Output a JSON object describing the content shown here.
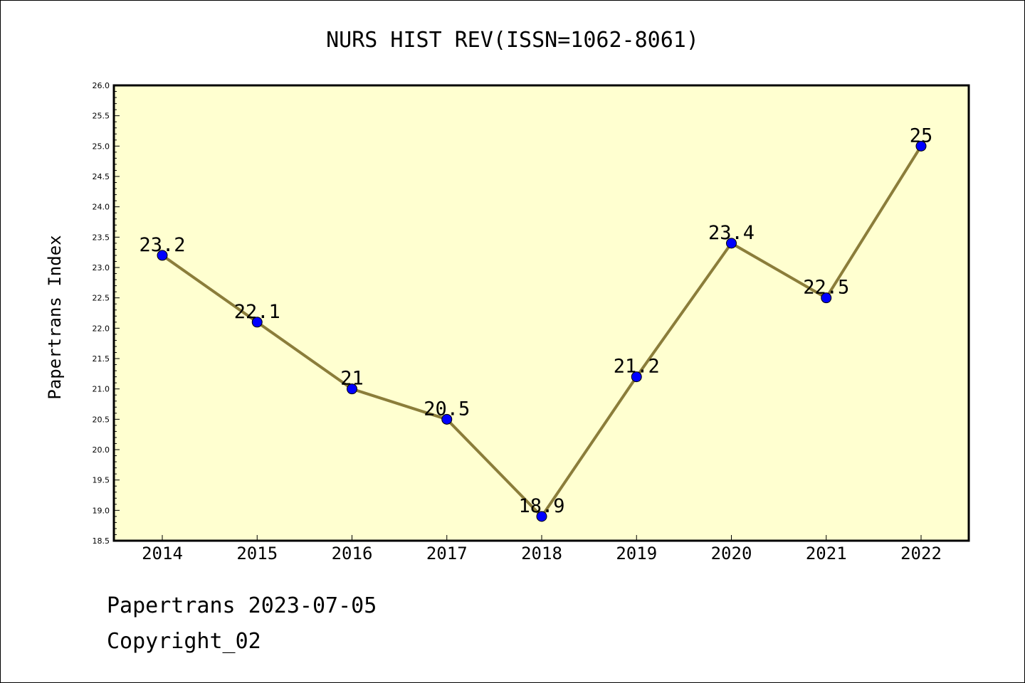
{
  "chart_data": {
    "type": "line",
    "title": "NURS HIST REV(ISSN=1062-8061)",
    "xlabel": "",
    "ylabel": "Papertrans Index",
    "categories": [
      "2014",
      "2015",
      "2016",
      "2017",
      "2018",
      "2019",
      "2020",
      "2021",
      "2022"
    ],
    "series": [
      {
        "values": [
          23.2,
          22.1,
          21,
          20.5,
          18.9,
          21.2,
          23.4,
          22.5,
          25
        ],
        "labels": [
          "23.2",
          "22.1",
          "21",
          "20.5",
          "18.9",
          "21.2",
          "23.4",
          "22.5",
          "25"
        ]
      }
    ],
    "ylim": [
      18.5,
      26.0
    ],
    "yticks": [
      "18.5",
      "19.0",
      "19.5",
      "20.0",
      "20.5",
      "21.0",
      "21.5",
      "22.0",
      "22.5",
      "23.0",
      "23.5",
      "24.0",
      "24.5",
      "25.0",
      "25.5",
      "26.0"
    ],
    "grid": false,
    "legend": "none",
    "colors": {
      "plot_background": "#ffffd0",
      "line": "#8b7d3a",
      "marker": "#0000ff",
      "axis": "#000000"
    }
  },
  "footer": {
    "date_line": "Papertrans 2023-07-05",
    "copyright": "Copyright_02"
  }
}
